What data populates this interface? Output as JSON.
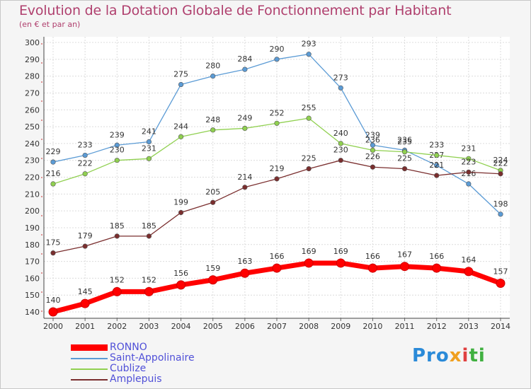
{
  "title": "Evolution de la Dotation Globale de Fonctionnement par Habitant",
  "subtitle": "(en € et par an)",
  "logo": {
    "text": "Proxiti",
    "parts": [
      "Pro",
      "x",
      "i",
      "ti"
    ]
  },
  "chart_data": {
    "type": "line",
    "title": "Evolution de la Dotation Globale de Fonctionnement par Habitant",
    "subtitle": "(en € et par an)",
    "xlabel": "",
    "ylabel": "",
    "ylim": [
      135,
      300
    ],
    "yticks": [
      140,
      150,
      160,
      170,
      180,
      190,
      200,
      210,
      220,
      230,
      240,
      250,
      260,
      270,
      280,
      290,
      300
    ],
    "grid": true,
    "legend_position": "bottom-left",
    "categories": [
      "2000",
      "2001",
      "2002",
      "2003",
      "2004",
      "2005",
      "2006",
      "2007",
      "2008",
      "2009",
      "2010",
      "2011",
      "2012",
      "2013",
      "2014"
    ],
    "series": [
      {
        "name": "RONNO",
        "color": "#ff0000",
        "values": [
          140,
          145,
          152,
          152,
          156,
          159,
          163,
          166,
          169,
          169,
          166,
          167,
          166,
          164,
          157
        ]
      },
      {
        "name": "Saint-Appolinaire",
        "color": "#5b9bd5",
        "values": [
          229,
          233,
          239,
          241,
          275,
          280,
          284,
          290,
          293,
          273,
          239,
          236,
          227,
          216,
          198
        ]
      },
      {
        "name": "Cublize",
        "color": "#90d050",
        "values": [
          216,
          222,
          230,
          231,
          244,
          248,
          249,
          252,
          255,
          240,
          236,
          235,
          233,
          231,
          224
        ]
      },
      {
        "name": "Amplepuis",
        "color": "#7a2e2e",
        "values": [
          175,
          179,
          185,
          185,
          199,
          205,
          214,
          219,
          225,
          230,
          226,
          225,
          221,
          223,
          222
        ]
      }
    ]
  }
}
